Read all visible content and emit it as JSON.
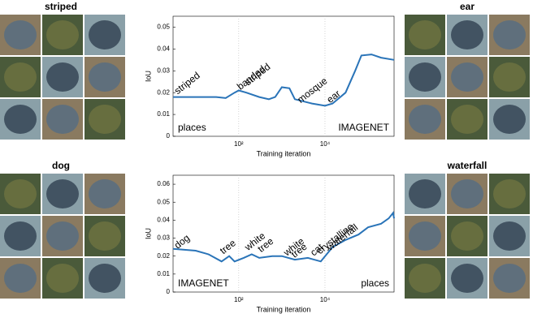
{
  "chart_data": [
    {
      "type": "line",
      "left_panel": "striped",
      "right_panel": "ear",
      "xlabel": "Training iteration",
      "ylabel": "IoU",
      "xscale": "log",
      "color": "#2a74b8",
      "xlim": [
        3,
        400000
      ],
      "xticks": [
        {
          "value": 100,
          "label": "10²"
        },
        {
          "value": 10000,
          "label": "10⁴"
        }
      ],
      "ylim": [
        0,
        0.055
      ],
      "yticks": [
        0,
        0.01,
        0.02,
        0.03,
        0.04,
        0.05
      ],
      "grid": true,
      "x": [
        3,
        10,
        30,
        50,
        80,
        100,
        150,
        300,
        500,
        700,
        1000,
        1500,
        2000,
        5000,
        10000,
        15000,
        30000,
        50000,
        70000,
        120000,
        200000,
        400000
      ],
      "values": [
        0.018,
        0.018,
        0.018,
        0.0175,
        0.02,
        0.021,
        0.02,
        0.018,
        0.017,
        0.018,
        0.0225,
        0.022,
        0.017,
        0.015,
        0.014,
        0.015,
        0.02,
        0.03,
        0.037,
        0.0375,
        0.036,
        0.035
      ],
      "annotations": [
        {
          "text": "striped",
          "x": 3.5,
          "y": 0.02
        },
        {
          "text": "banded",
          "x": 100,
          "y": 0.022
        },
        {
          "text": "striped",
          "x": 150,
          "y": 0.024
        },
        {
          "text": "mosque",
          "x": 2500,
          "y": 0.016
        },
        {
          "text": "ear",
          "x": 12000,
          "y": 0.016
        }
      ],
      "logo_left": "places",
      "logo_right": "IMAGENET"
    },
    {
      "type": "line",
      "left_panel": "dog",
      "right_panel": "waterfall",
      "xlabel": "Training iteration",
      "ylabel": "IoU",
      "xscale": "log",
      "color": "#2a74b8",
      "xlim": [
        3,
        400000
      ],
      "xticks": [
        {
          "value": 100,
          "label": "10²"
        },
        {
          "value": 10000,
          "label": "10⁴"
        }
      ],
      "ylim": [
        0,
        0.065
      ],
      "yticks": [
        0,
        0.01,
        0.02,
        0.03,
        0.04,
        0.05,
        0.06
      ],
      "grid": true,
      "x": [
        3,
        10,
        20,
        40,
        60,
        80,
        130,
        200,
        300,
        600,
        1000,
        2000,
        4000,
        8000,
        15000,
        30000,
        60000,
        100000,
        200000,
        300000,
        380000,
        400000
      ],
      "values": [
        0.024,
        0.023,
        0.021,
        0.017,
        0.02,
        0.017,
        0.019,
        0.021,
        0.019,
        0.02,
        0.02,
        0.018,
        0.019,
        0.017,
        0.025,
        0.029,
        0.032,
        0.036,
        0.038,
        0.041,
        0.044,
        0.041
      ],
      "annotations": [
        {
          "text": "dog",
          "x": 3.5,
          "y": 0.025
        },
        {
          "text": "tree",
          "x": 40,
          "y": 0.022
        },
        {
          "text": "white",
          "x": 150,
          "y": 0.024
        },
        {
          "text": "tree",
          "x": 300,
          "y": 0.023
        },
        {
          "text": "white",
          "x": 1200,
          "y": 0.021
        },
        {
          "text": "tree",
          "x": 1800,
          "y": 0.02
        },
        {
          "text": "cat",
          "x": 5000,
          "y": 0.021
        },
        {
          "text": "crystalline",
          "x": 7000,
          "y": 0.022
        },
        {
          "text": "waterfall",
          "x": 12000,
          "y": 0.024
        }
      ],
      "logo_left": "IMAGENET",
      "logo_right": "places"
    }
  ]
}
